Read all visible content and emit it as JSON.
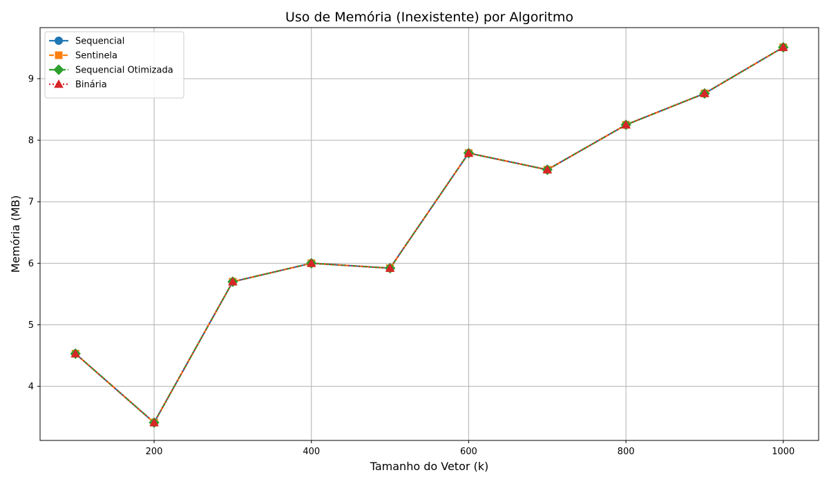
{
  "chart_data": {
    "type": "line",
    "title": "Uso de Memória (Inexistente) por Algoritmo",
    "xlabel": "Tamanho do Vetor (k)",
    "ylabel": "Memória (MB)",
    "xlim": [
      55,
      1045
    ],
    "ylim": [
      3.12,
      9.83
    ],
    "x_ticks": [
      200,
      400,
      600,
      800,
      1000
    ],
    "y_ticks": [
      4,
      5,
      6,
      7,
      8,
      9
    ],
    "grid": true,
    "legend_position": "upper-left",
    "x": [
      100,
      200,
      300,
      400,
      500,
      600,
      700,
      800,
      900,
      1000
    ],
    "series": [
      {
        "name": "Sequencial",
        "color": "#1f77b4",
        "line_style": "solid",
        "marker": "circle",
        "values": [
          4.53,
          3.41,
          5.7,
          6.0,
          5.92,
          7.79,
          7.52,
          8.25,
          8.76,
          9.51
        ]
      },
      {
        "name": "Sentinela",
        "color": "#ff7f0e",
        "line_style": "dashed",
        "marker": "square",
        "values": [
          4.53,
          3.41,
          5.7,
          6.0,
          5.92,
          7.79,
          7.52,
          8.25,
          8.76,
          9.51
        ]
      },
      {
        "name": "Sequencial Otimizada",
        "color": "#2ca02c",
        "line_style": "dashdot",
        "marker": "diamond",
        "values": [
          4.53,
          3.41,
          5.7,
          6.0,
          5.92,
          7.79,
          7.52,
          8.25,
          8.76,
          9.51
        ]
      },
      {
        "name": "Binária",
        "color": "#d62728",
        "line_style": "dotted",
        "marker": "triangle",
        "values": [
          4.53,
          3.41,
          5.7,
          6.0,
          5.92,
          7.79,
          7.52,
          8.25,
          8.76,
          9.51
        ]
      }
    ]
  }
}
